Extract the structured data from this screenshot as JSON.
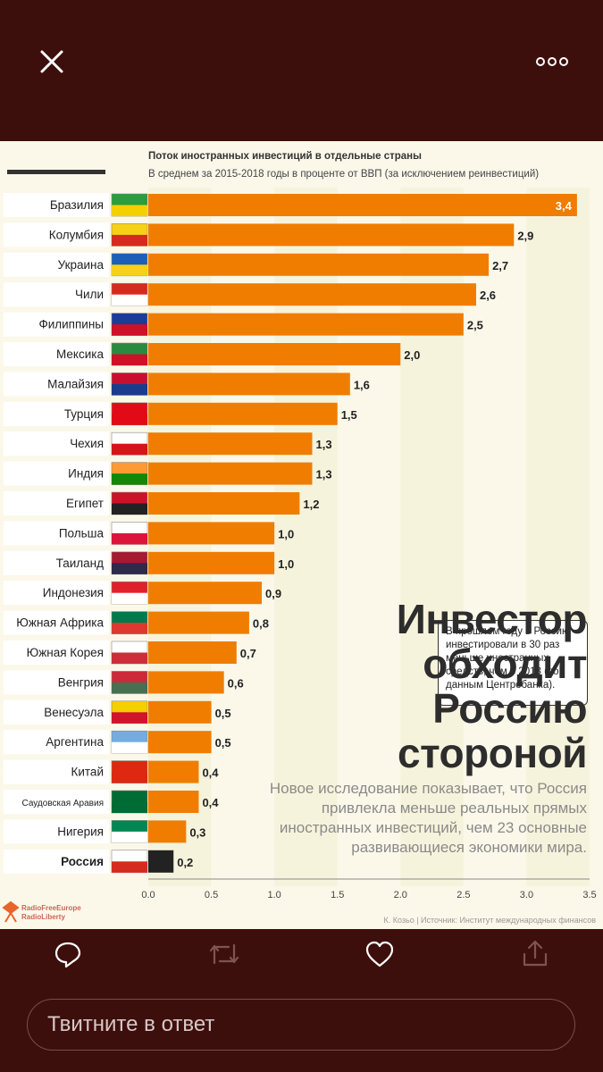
{
  "toolbar": {
    "close_icon": "close-icon",
    "more_icon": "more-icon"
  },
  "chart_data": {
    "type": "bar",
    "orientation": "horizontal",
    "title": "Поток иностранных инвестиций в отдельные страны",
    "subtitle": "В среднем за 2015-2018 годы в проценте от ВВП (за исключением реинвестиций)",
    "categories": [
      "Бразилия",
      "Колумбия",
      "Украина",
      "Чили",
      "Филиппины",
      "Мексика",
      "Малайзия",
      "Турция",
      "Чехия",
      "Индия",
      "Египет",
      "Польша",
      "Таиланд",
      "Индонезия",
      "Южная Африка",
      "Южная Корея",
      "Венгрия",
      "Венесуэла",
      "Аргентина",
      "Китай",
      "Саудовская Аравия",
      "Нигерия",
      "Россия"
    ],
    "values": [
      3.4,
      2.9,
      2.7,
      2.6,
      2.5,
      2.0,
      1.6,
      1.5,
      1.3,
      1.3,
      1.2,
      1.0,
      1.0,
      0.9,
      0.8,
      0.7,
      0.6,
      0.5,
      0.5,
      0.4,
      0.4,
      0.3,
      0.2
    ],
    "value_labels": [
      "3,4",
      "2,9",
      "2,7",
      "2,6",
      "2,5",
      "2,0",
      "1,6",
      "1,5",
      "1,3",
      "1,3",
      "1,2",
      "1,0",
      "1,0",
      "0,9",
      "0,8",
      "0,7",
      "0,6",
      "0,5",
      "0,5",
      "0,4",
      "0,4",
      "0,3",
      "0,2"
    ],
    "xlim": [
      0,
      3.5
    ],
    "xticks": [
      0,
      0.5,
      1.0,
      1.5,
      2.0,
      2.5,
      3.0,
      3.5
    ],
    "xtick_labels": [
      "0.0",
      "0.5",
      "1.0",
      "1.5",
      "2.0",
      "2.5",
      "3.0",
      "3.5"
    ],
    "highlight": "Россия",
    "bar_color": "#f07d00",
    "highlight_color": "#222222",
    "callout": "В прошлом году в Россию инвестировали в 30 раз меньше иностранных средств, чем в 2013 (по данным Центробанка).",
    "headline": [
      "Инвестор",
      "обходит",
      "Россию",
      "стороной"
    ],
    "subtext": "Новое исследование показывает, что Россия привлекла меньше реальных прямых иностранных инвестиций, чем 23 основные развивающиеся экономики мира.",
    "source": "К. Козьо | Источник: Институт международных финансов",
    "logo": [
      "RadioFreeEurope",
      "RadioLiberty"
    ]
  },
  "actions": {
    "reply_placeholder": "Твитните в ответ"
  }
}
